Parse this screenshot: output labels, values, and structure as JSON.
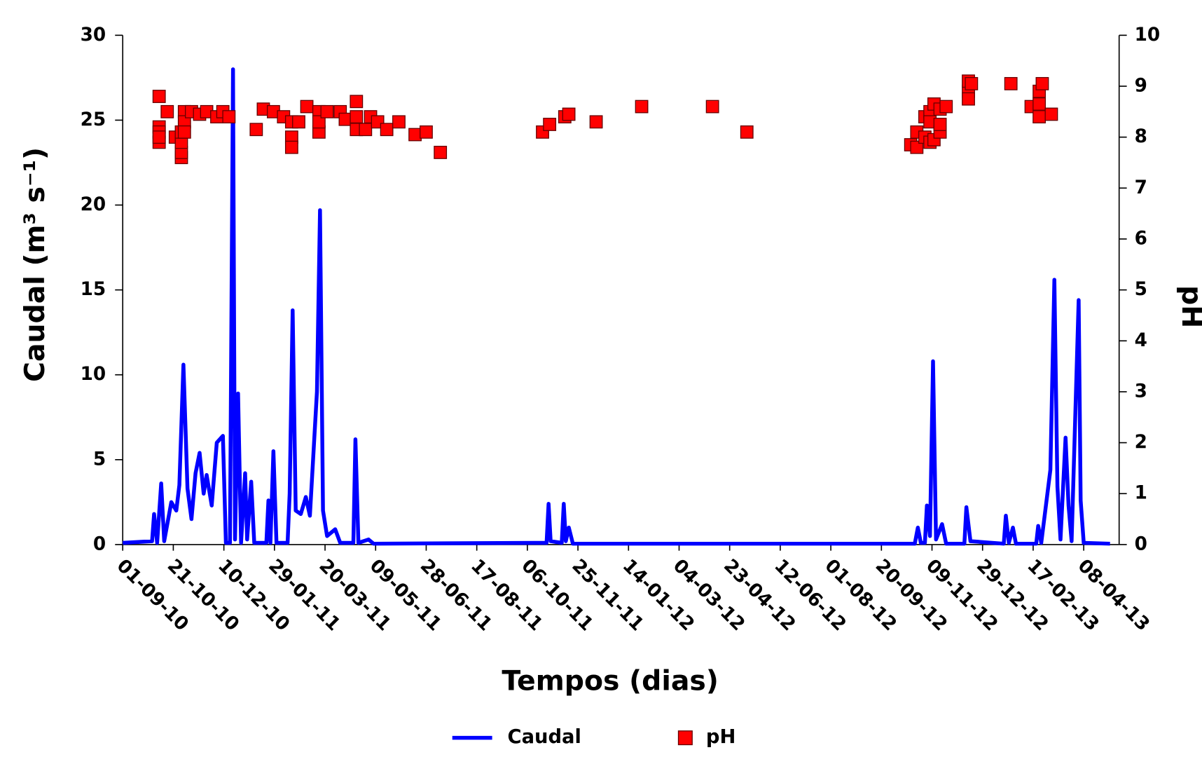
{
  "chart_data": {
    "type": "line",
    "x_label": "Tempos (dias)",
    "y_label": "Caudal (m³ s⁻¹)",
    "y2_label": "pH",
    "xlim": [
      "2010-09-01",
      "2013-05-13"
    ],
    "xticks": [
      {
        "value": "2010-09-01",
        "label": "01-09-10"
      },
      {
        "value": "2010-10-21",
        "label": "21-10-10"
      },
      {
        "value": "2010-12-10",
        "label": "10-12-10"
      },
      {
        "value": "2011-01-29",
        "label": "29-01-11"
      },
      {
        "value": "2011-03-20",
        "label": "20-03-11"
      },
      {
        "value": "2011-05-09",
        "label": "09-05-11"
      },
      {
        "value": "2011-06-28",
        "label": "28-06-11"
      },
      {
        "value": "2011-08-17",
        "label": "17-08-11"
      },
      {
        "value": "2011-10-06",
        "label": "06-10-11"
      },
      {
        "value": "2011-11-25",
        "label": "25-11-11"
      },
      {
        "value": "2012-01-14",
        "label": "14-01-12"
      },
      {
        "value": "2012-03-04",
        "label": "04-03-12"
      },
      {
        "value": "2012-04-23",
        "label": "23-04-12"
      },
      {
        "value": "2012-06-12",
        "label": "12-06-12"
      },
      {
        "value": "2012-08-01",
        "label": "01-08-12"
      },
      {
        "value": "2012-09-20",
        "label": "20-09-12"
      },
      {
        "value": "2012-11-09",
        "label": "09-11-12"
      },
      {
        "value": "2012-12-29",
        "label": "29-12-12"
      },
      {
        "value": "2013-02-17",
        "label": "17-02-13"
      },
      {
        "value": "2013-04-08",
        "label": "08-04-13"
      }
    ],
    "ylim": [
      0,
      30
    ],
    "yticks": [
      0,
      5,
      10,
      15,
      20,
      25,
      30
    ],
    "y2lim": [
      0,
      10
    ],
    "y2ticks": [
      0,
      1,
      2,
      3,
      4,
      5,
      6,
      7,
      8,
      9,
      10
    ],
    "legend": "bottom",
    "series": [
      {
        "name": "Caudal",
        "type": "line",
        "color": "#0000ff",
        "x": [
          "2010-09-01",
          "2010-09-30",
          "2010-10-02",
          "2010-10-05",
          "2010-10-09",
          "2010-10-12",
          "2010-10-19",
          "2010-10-24",
          "2010-10-27",
          "2010-10-31",
          "2010-11-04",
          "2010-11-08",
          "2010-11-12",
          "2010-11-16",
          "2010-11-20",
          "2010-11-23",
          "2010-11-28",
          "2010-12-03",
          "2010-12-09",
          "2010-12-12",
          "2010-12-16",
          "2010-12-19",
          "2010-12-21",
          "2010-12-24",
          "2010-12-27",
          "2010-12-31",
          "2011-01-02",
          "2011-01-06",
          "2011-01-09",
          "2011-01-21",
          "2011-01-23",
          "2011-01-25",
          "2011-01-28",
          "2011-01-31",
          "2011-02-11",
          "2011-02-13",
          "2011-02-16",
          "2011-02-19",
          "2011-02-24",
          "2011-03-01",
          "2011-03-05",
          "2011-03-12",
          "2011-03-15",
          "2011-03-18",
          "2011-03-22",
          "2011-03-30",
          "2011-04-04",
          "2011-04-17",
          "2011-04-19",
          "2011-04-22",
          "2011-05-02",
          "2011-05-07",
          "2011-10-14",
          "2011-10-25",
          "2011-10-27",
          "2011-10-29",
          "2011-11-09",
          "2011-11-11",
          "2011-11-13",
          "2011-11-16",
          "2011-11-20",
          "2012-10-23",
          "2012-10-26",
          "2012-10-29",
          "2012-11-02",
          "2012-11-04",
          "2012-11-07",
          "2012-11-10",
          "2012-11-13",
          "2012-11-19",
          "2012-11-23",
          "2012-12-11",
          "2012-12-13",
          "2012-12-17",
          "2013-01-19",
          "2013-01-21",
          "2013-01-24",
          "2013-01-28",
          "2013-01-31",
          "2013-02-20",
          "2013-02-22",
          "2013-02-25",
          "2013-03-06",
          "2013-03-10",
          "2013-03-13",
          "2013-03-16",
          "2013-03-21",
          "2013-03-24",
          "2013-03-27",
          "2013-04-03",
          "2013-04-05",
          "2013-04-08",
          "2013-05-04"
        ],
        "values": [
          0.1,
          0.2,
          1.8,
          0.1,
          3.6,
          0.2,
          2.5,
          2.0,
          3.5,
          10.6,
          3.3,
          1.5,
          4.2,
          5.4,
          3.0,
          4.1,
          2.3,
          6.0,
          6.4,
          0.1,
          0.1,
          28,
          0.3,
          8.9,
          0.1,
          4.2,
          0.3,
          3.7,
          0.1,
          0.1,
          2.6,
          0.1,
          5.5,
          0.1,
          0.1,
          3.0,
          13.8,
          2.0,
          1.8,
          2.8,
          1.7,
          9.0,
          19.7,
          2.0,
          0.5,
          0.9,
          0.1,
          0.1,
          6.2,
          0.1,
          0.3,
          0.05,
          0.1,
          0.1,
          2.4,
          0.2,
          0.1,
          2.4,
          0.2,
          1.0,
          0.05,
          0.05,
          1.0,
          0.1,
          0.1,
          2.3,
          0.5,
          10.8,
          0.3,
          1.2,
          0.05,
          0.05,
          2.2,
          0.2,
          0.05,
          1.7,
          0.1,
          1.0,
          0.05,
          0.05,
          1.1,
          0.1,
          4.4,
          15.6,
          3.4,
          0.3,
          6.3,
          2.3,
          0.2,
          14.4,
          2.6,
          0.1,
          0.05
        ]
      },
      {
        "name": "pH",
        "type": "scatter",
        "axis": "y2",
        "color": "#ff0000",
        "x": [
          "2010-10-07",
          "2010-10-07",
          "2010-10-07",
          "2010-10-07",
          "2010-10-07",
          "2010-10-15",
          "2010-10-23",
          "2010-10-29",
          "2010-10-29",
          "2010-10-29",
          "2010-10-29",
          "2010-11-01",
          "2010-11-01",
          "2010-11-01",
          "2010-11-08",
          "2010-11-16",
          "2010-11-23",
          "2010-12-03",
          "2010-12-09",
          "2010-12-15",
          "2011-01-11",
          "2011-01-18",
          "2011-01-28",
          "2011-02-07",
          "2011-02-15",
          "2011-02-15",
          "2011-02-15",
          "2011-02-22",
          "2011-03-02",
          "2011-03-14",
          "2011-03-14",
          "2011-03-14",
          "2011-03-22",
          "2011-04-04",
          "2011-04-09",
          "2011-04-20",
          "2011-04-20",
          "2011-04-20",
          "2011-04-29",
          "2011-05-04",
          "2011-05-11",
          "2011-05-20",
          "2011-06-01",
          "2011-06-17",
          "2011-06-28",
          "2011-07-12",
          "2011-10-21",
          "2011-10-28",
          "2011-11-12",
          "2011-11-16",
          "2011-12-13",
          "2012-01-27",
          "2012-04-06",
          "2012-05-10",
          "2012-10-19",
          "2012-10-25",
          "2012-10-25",
          "2012-11-02",
          "2012-11-02",
          "2012-11-07",
          "2012-11-07",
          "2012-11-07",
          "2012-11-11",
          "2012-11-11",
          "2012-11-17",
          "2012-11-17",
          "2012-11-17",
          "2012-11-23",
          "2012-12-15",
          "2012-12-15",
          "2012-12-15",
          "2012-12-18",
          "2013-01-26",
          "2013-02-15",
          "2013-02-23",
          "2013-02-23",
          "2013-02-23",
          "2013-02-26",
          "2013-03-07"
        ],
        "values": [
          8.8,
          8.2,
          8.1,
          7.9,
          8.0,
          8.5,
          8.0,
          7.6,
          7.7,
          7.9,
          8.1,
          8.5,
          8.3,
          8.1,
          8.5,
          8.45,
          8.5,
          8.4,
          8.5,
          8.4,
          8.15,
          8.55,
          8.5,
          8.4,
          8.0,
          7.8,
          8.3,
          8.3,
          8.6,
          8.5,
          8.1,
          8.3,
          8.5,
          8.5,
          8.35,
          8.7,
          8.4,
          8.15,
          8.15,
          8.4,
          8.3,
          8.15,
          8.3,
          8.05,
          8.1,
          7.7,
          8.1,
          8.25,
          8.4,
          8.45,
          8.3,
          8.6,
          8.6,
          8.1,
          7.85,
          8.1,
          7.8,
          8.0,
          8.4,
          8.5,
          7.9,
          8.3,
          8.65,
          7.95,
          8.55,
          8.1,
          8.25,
          8.6,
          8.9,
          8.75,
          9.1,
          9.05,
          9.05,
          8.6,
          8.4,
          8.65,
          8.9,
          9.05,
          8.45
        ]
      }
    ]
  }
}
